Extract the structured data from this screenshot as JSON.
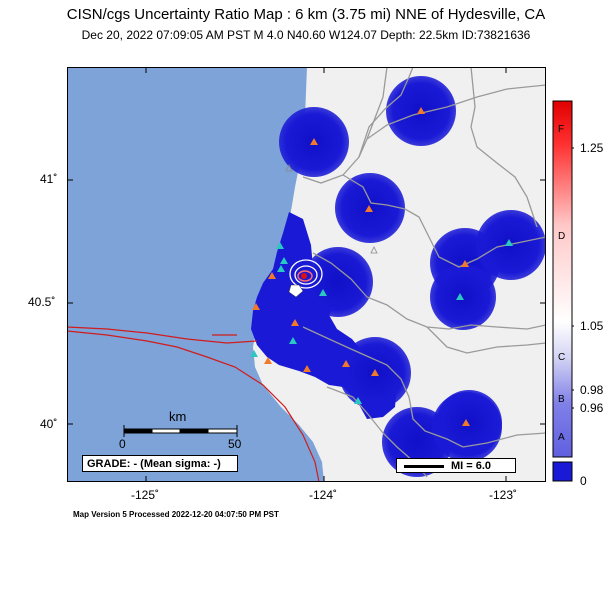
{
  "header": {
    "title": "CISN/cgs Uncertainty Ratio Map : 6 km (3.75 mi) NNE of Hydesville, CA",
    "subtitle": "Dec 20, 2022 07:09:05 AM PST    M 4.0    N40.60 W124.07    Depth: 22.5km    ID:73821636"
  },
  "axes": {
    "lat_labels": [
      "41˚",
      "40.5˚",
      "40˚"
    ],
    "lon_labels": [
      "-125˚",
      "-124˚",
      "-123˚"
    ]
  },
  "scale_bar": {
    "unit": "km",
    "left": "0",
    "right": "50"
  },
  "grade_box": "GRADE: - (Mean sigma: -)",
  "mi_legend": "MI = 6.0",
  "colorbar": {
    "values": [
      "1.25",
      "1.05",
      "0.98",
      "0.96",
      "0"
    ],
    "grades": [
      "F",
      "D",
      "C",
      "B",
      "A"
    ]
  },
  "footer": "Map Version 5 Processed 2022-12-20 04:07:50 PM PST",
  "colors": {
    "ocean": "#7ea3d9",
    "land": "#f0f0f0",
    "uncertainty_low": "#1a1ad6",
    "station_orange": "#f07a2a",
    "station_teal": "#2ac8c0",
    "fault": "#d01c1c"
  }
}
